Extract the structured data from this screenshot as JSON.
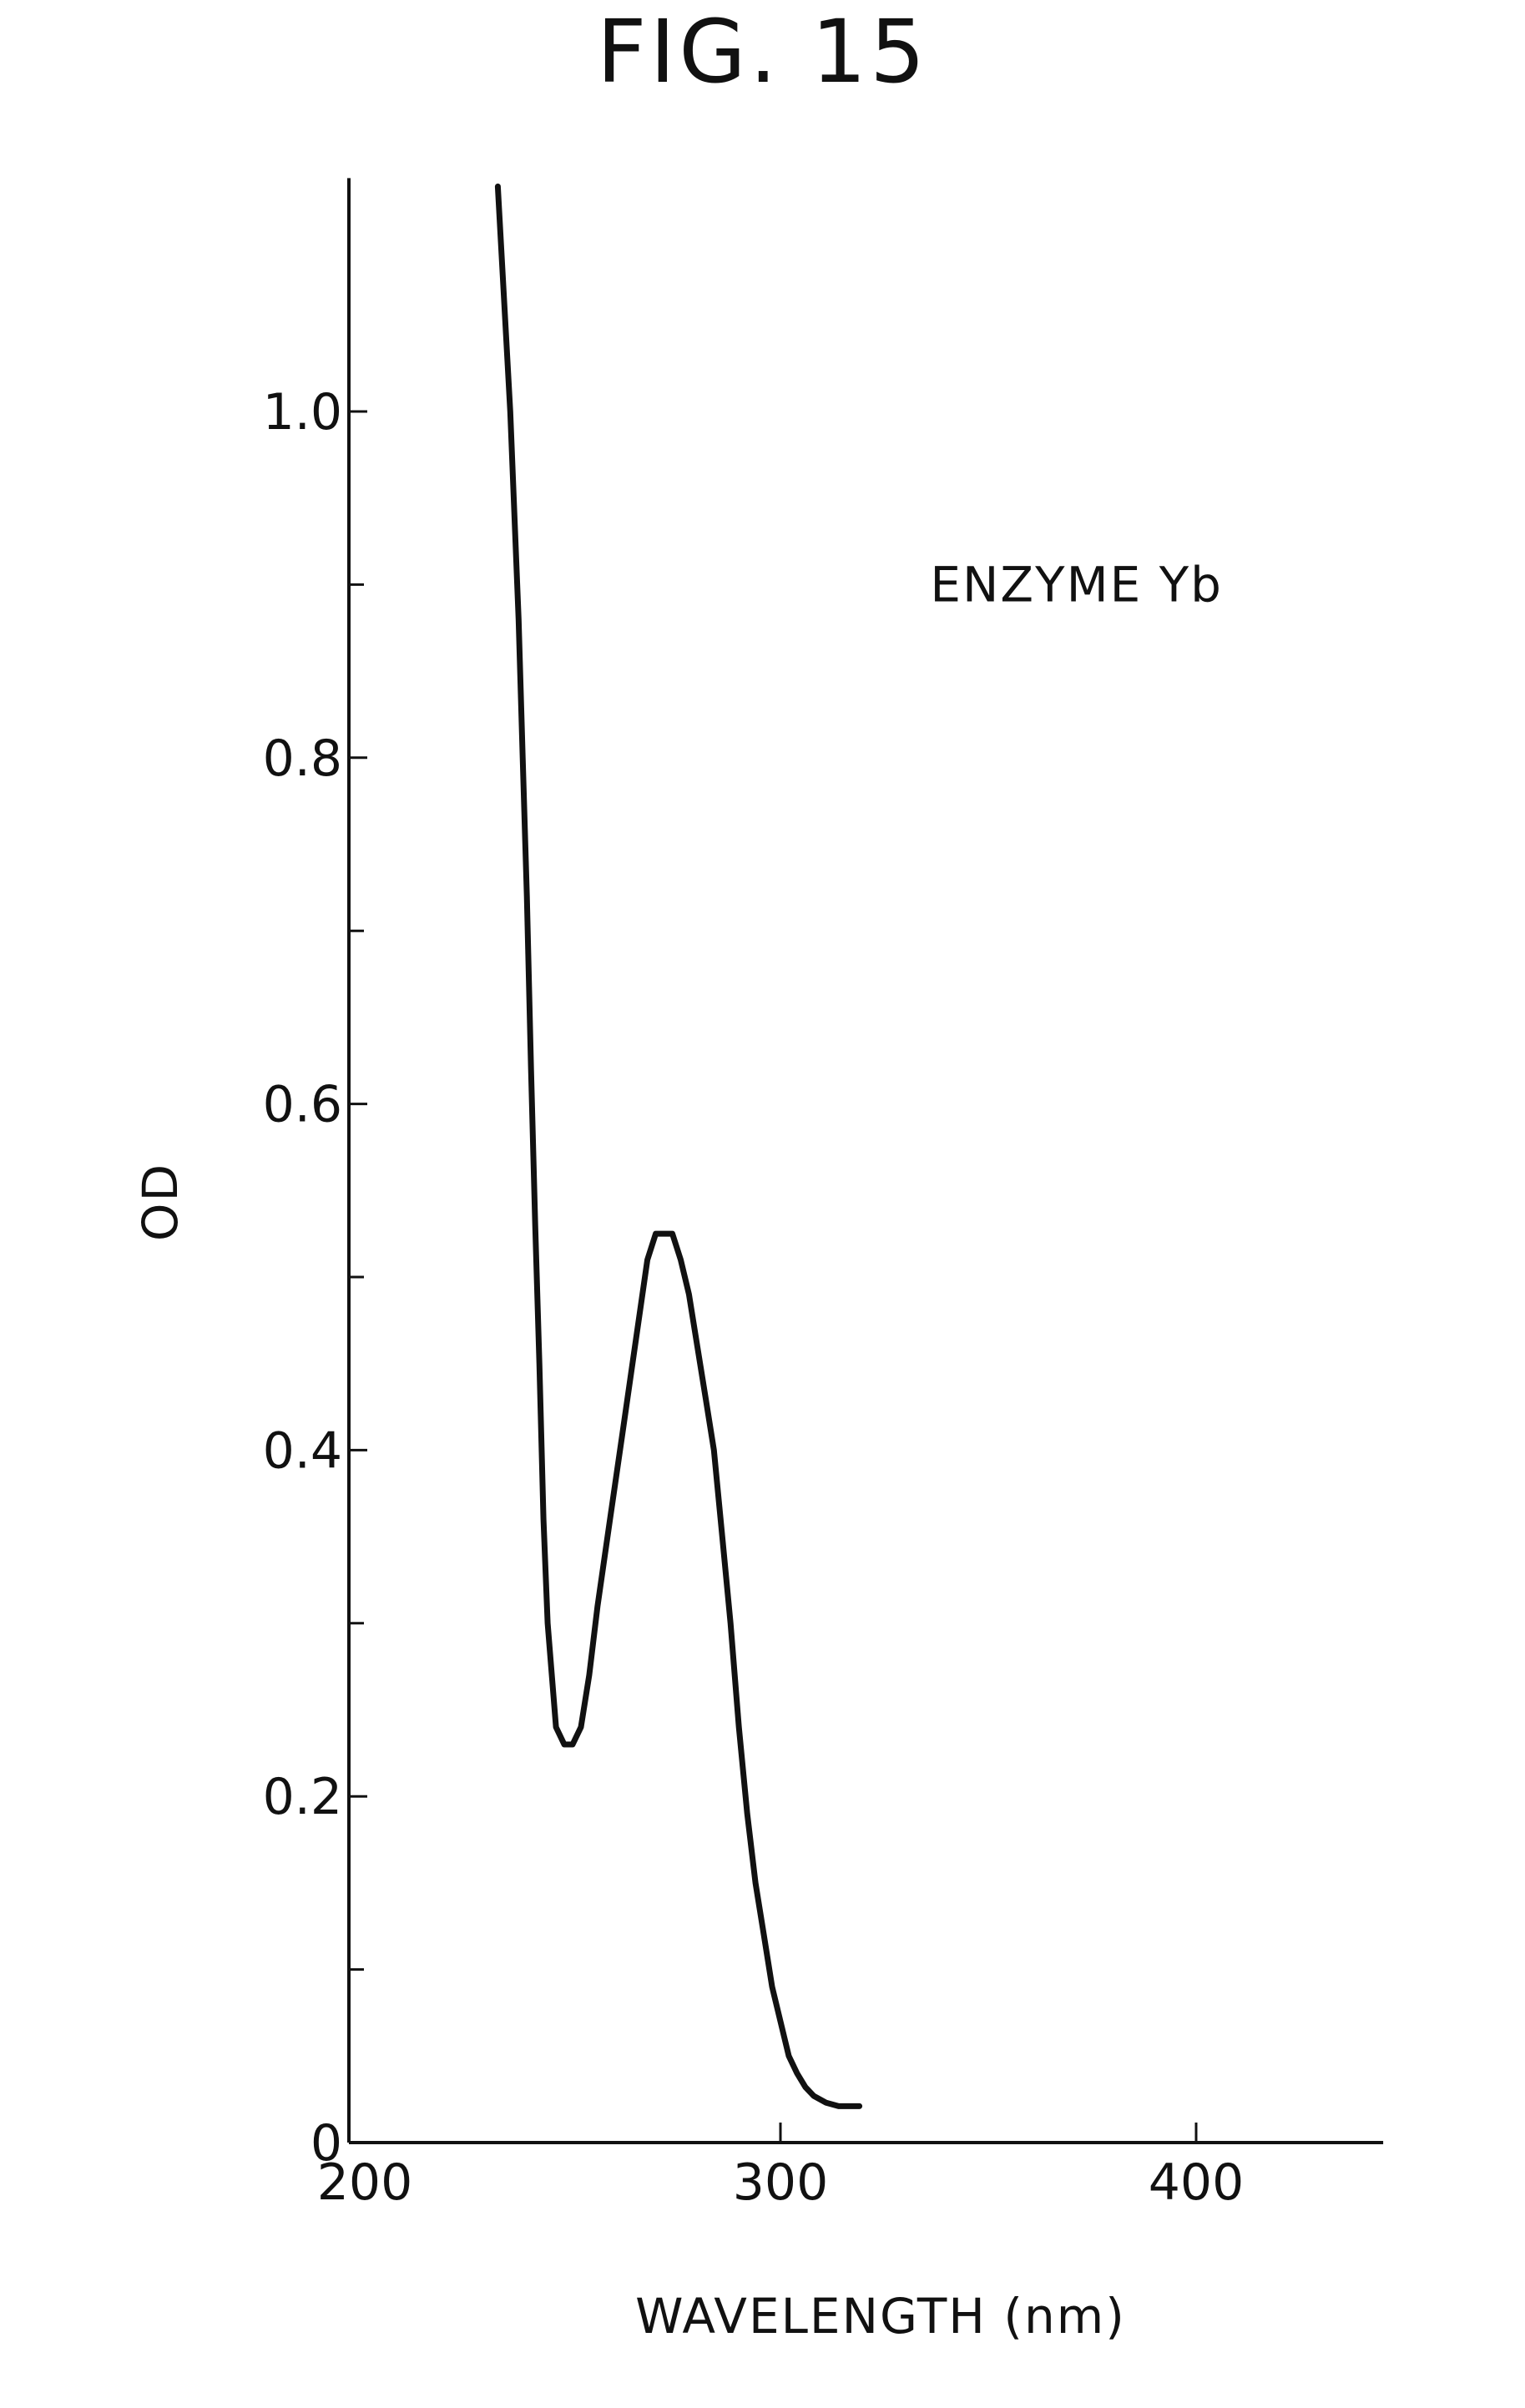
{
  "figure": {
    "title": "FIG. 15"
  },
  "chart_data": {
    "type": "line",
    "title": "FIG. 15",
    "xlabel": "WAVELENGTH (nm)",
    "ylabel": "OD",
    "xlim": [
      200,
      445
    ],
    "ylim": [
      0,
      1.13
    ],
    "x_ticks": [
      200,
      300,
      400
    ],
    "x_tick_labels": [
      "200",
      "300",
      "400"
    ],
    "y_major_ticks": [
      0,
      0.2,
      0.4,
      0.6,
      0.8,
      1.0
    ],
    "y_tick_labels": [
      "0",
      "0.2",
      "0.4",
      "0.6",
      "0.8",
      "1.0"
    ],
    "y_minor_ticks": [
      0.1,
      0.3,
      0.5,
      0.7,
      0.9
    ],
    "grid": false,
    "annotations": [
      {
        "text": "ENZYME Yb",
        "x": 330,
        "y": 0.9
      }
    ],
    "series": [
      {
        "name": "ENZYME Yb",
        "x": [
          232,
          235,
          237,
          238,
          239,
          240,
          241,
          242,
          243,
          244,
          246,
          248,
          250,
          252,
          254,
          256,
          259,
          262,
          265,
          268,
          270,
          272,
          274,
          276,
          278,
          280,
          282,
          284,
          286,
          288,
          290,
          292,
          294,
          296,
          298,
          300,
          302,
          304,
          306,
          308,
          311,
          314,
          319
        ],
        "y": [
          1.13,
          1.0,
          0.88,
          0.8,
          0.72,
          0.62,
          0.53,
          0.45,
          0.36,
          0.3,
          0.24,
          0.23,
          0.23,
          0.24,
          0.27,
          0.31,
          0.36,
          0.41,
          0.46,
          0.51,
          0.525,
          0.525,
          0.525,
          0.51,
          0.49,
          0.46,
          0.43,
          0.4,
          0.35,
          0.3,
          0.24,
          0.19,
          0.15,
          0.12,
          0.09,
          0.07,
          0.05,
          0.04,
          0.032,
          0.027,
          0.023,
          0.021,
          0.021
        ]
      }
    ]
  }
}
